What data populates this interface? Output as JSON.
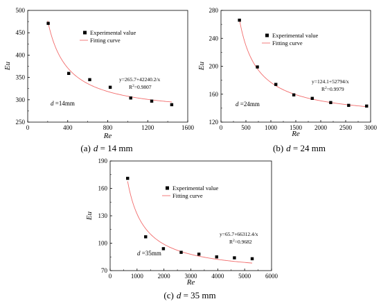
{
  "colors": {
    "marker": "#000000",
    "fit": "#f26c6c",
    "axis": "#000000"
  },
  "chart_data": [
    {
      "type": "scatter",
      "caption": {
        "letter": "(a)",
        "italic": "d",
        "rest": " = 14 mm"
      },
      "xlabel": "Re",
      "ylabel": "Eu",
      "xlim": [
        0,
        1600
      ],
      "ylim": [
        250,
        500
      ],
      "xticks": [
        0,
        400,
        800,
        1200,
        1600
      ],
      "yticks": [
        250,
        300,
        350,
        400,
        450,
        500
      ],
      "legend_position": "top-right",
      "series": [
        {
          "name": "Experimental value",
          "kind": "markers",
          "x": [
            205,
            410,
            620,
            825,
            1030,
            1240,
            1440
          ],
          "y": [
            471,
            359,
            345,
            328,
            304,
            297,
            289
          ]
        },
        {
          "name": "Fitting curve",
          "kind": "curve",
          "a": 265.7,
          "b": 42240.2,
          "domain": [
            200,
            1440
          ]
        }
      ],
      "equation": "y=265.7+42240.2/x",
      "r2_prefix": "R",
      "r2_sup": "2",
      "r2_value": "=0.9807",
      "d_label_italic": "d",
      "d_label_rest": " =14mm"
    },
    {
      "type": "scatter",
      "caption": {
        "letter": "(b)",
        "italic": "d",
        "rest": " = 24 mm"
      },
      "xlabel": "Re",
      "ylabel": "Eu",
      "xlim": [
        0,
        3000
      ],
      "ylim": [
        120,
        280
      ],
      "xticks": [
        0,
        500,
        1000,
        1500,
        2000,
        2500,
        3000
      ],
      "yticks": [
        120,
        160,
        200,
        240,
        280
      ],
      "legend_position": "top-right",
      "series": [
        {
          "name": "Experimental value",
          "kind": "markers",
          "x": [
            370,
            730,
            1100,
            1460,
            1830,
            2200,
            2560,
            2920
          ],
          "y": [
            266,
            199,
            174,
            159,
            154,
            148,
            144,
            143
          ]
        },
        {
          "name": "Fitting curve",
          "kind": "curve",
          "a": 124.1,
          "b": 52794,
          "domain": [
            370,
            2920
          ]
        }
      ],
      "equation": "y=124.1+52794/x",
      "r2_prefix": "R",
      "r2_sup": "2",
      "r2_value": "=0.9979",
      "d_label_italic": "d",
      "d_label_rest": " =24mm"
    },
    {
      "type": "scatter",
      "caption": {
        "letter": "(c)",
        "italic": "d",
        "rest": " = 35 mm"
      },
      "xlabel": "Re",
      "ylabel": "Eu",
      "xlim": [
        0,
        6000
      ],
      "ylim": [
        70,
        190
      ],
      "xticks": [
        0,
        1000,
        2000,
        3000,
        4000,
        5000,
        6000
      ],
      "yticks": [
        70,
        100,
        130,
        160,
        190
      ],
      "legend_position": "top-right",
      "series": [
        {
          "name": "Experimental value",
          "kind": "markers",
          "x": [
            650,
            1320,
            1980,
            2640,
            3300,
            3960,
            4620,
            5280
          ],
          "y": [
            171,
            107,
            94,
            90,
            88,
            85,
            84,
            83
          ]
        },
        {
          "name": "Fitting curve",
          "kind": "curve",
          "a": 65.7,
          "b": 66312.4,
          "domain": [
            650,
            5280
          ]
        }
      ],
      "equation": "y=65.7+66312.4/x",
      "r2_prefix": "R",
      "r2_sup": "2",
      "r2_value": "=0.9682",
      "d_label_italic": "d",
      "d_label_rest": " =35mm"
    }
  ]
}
